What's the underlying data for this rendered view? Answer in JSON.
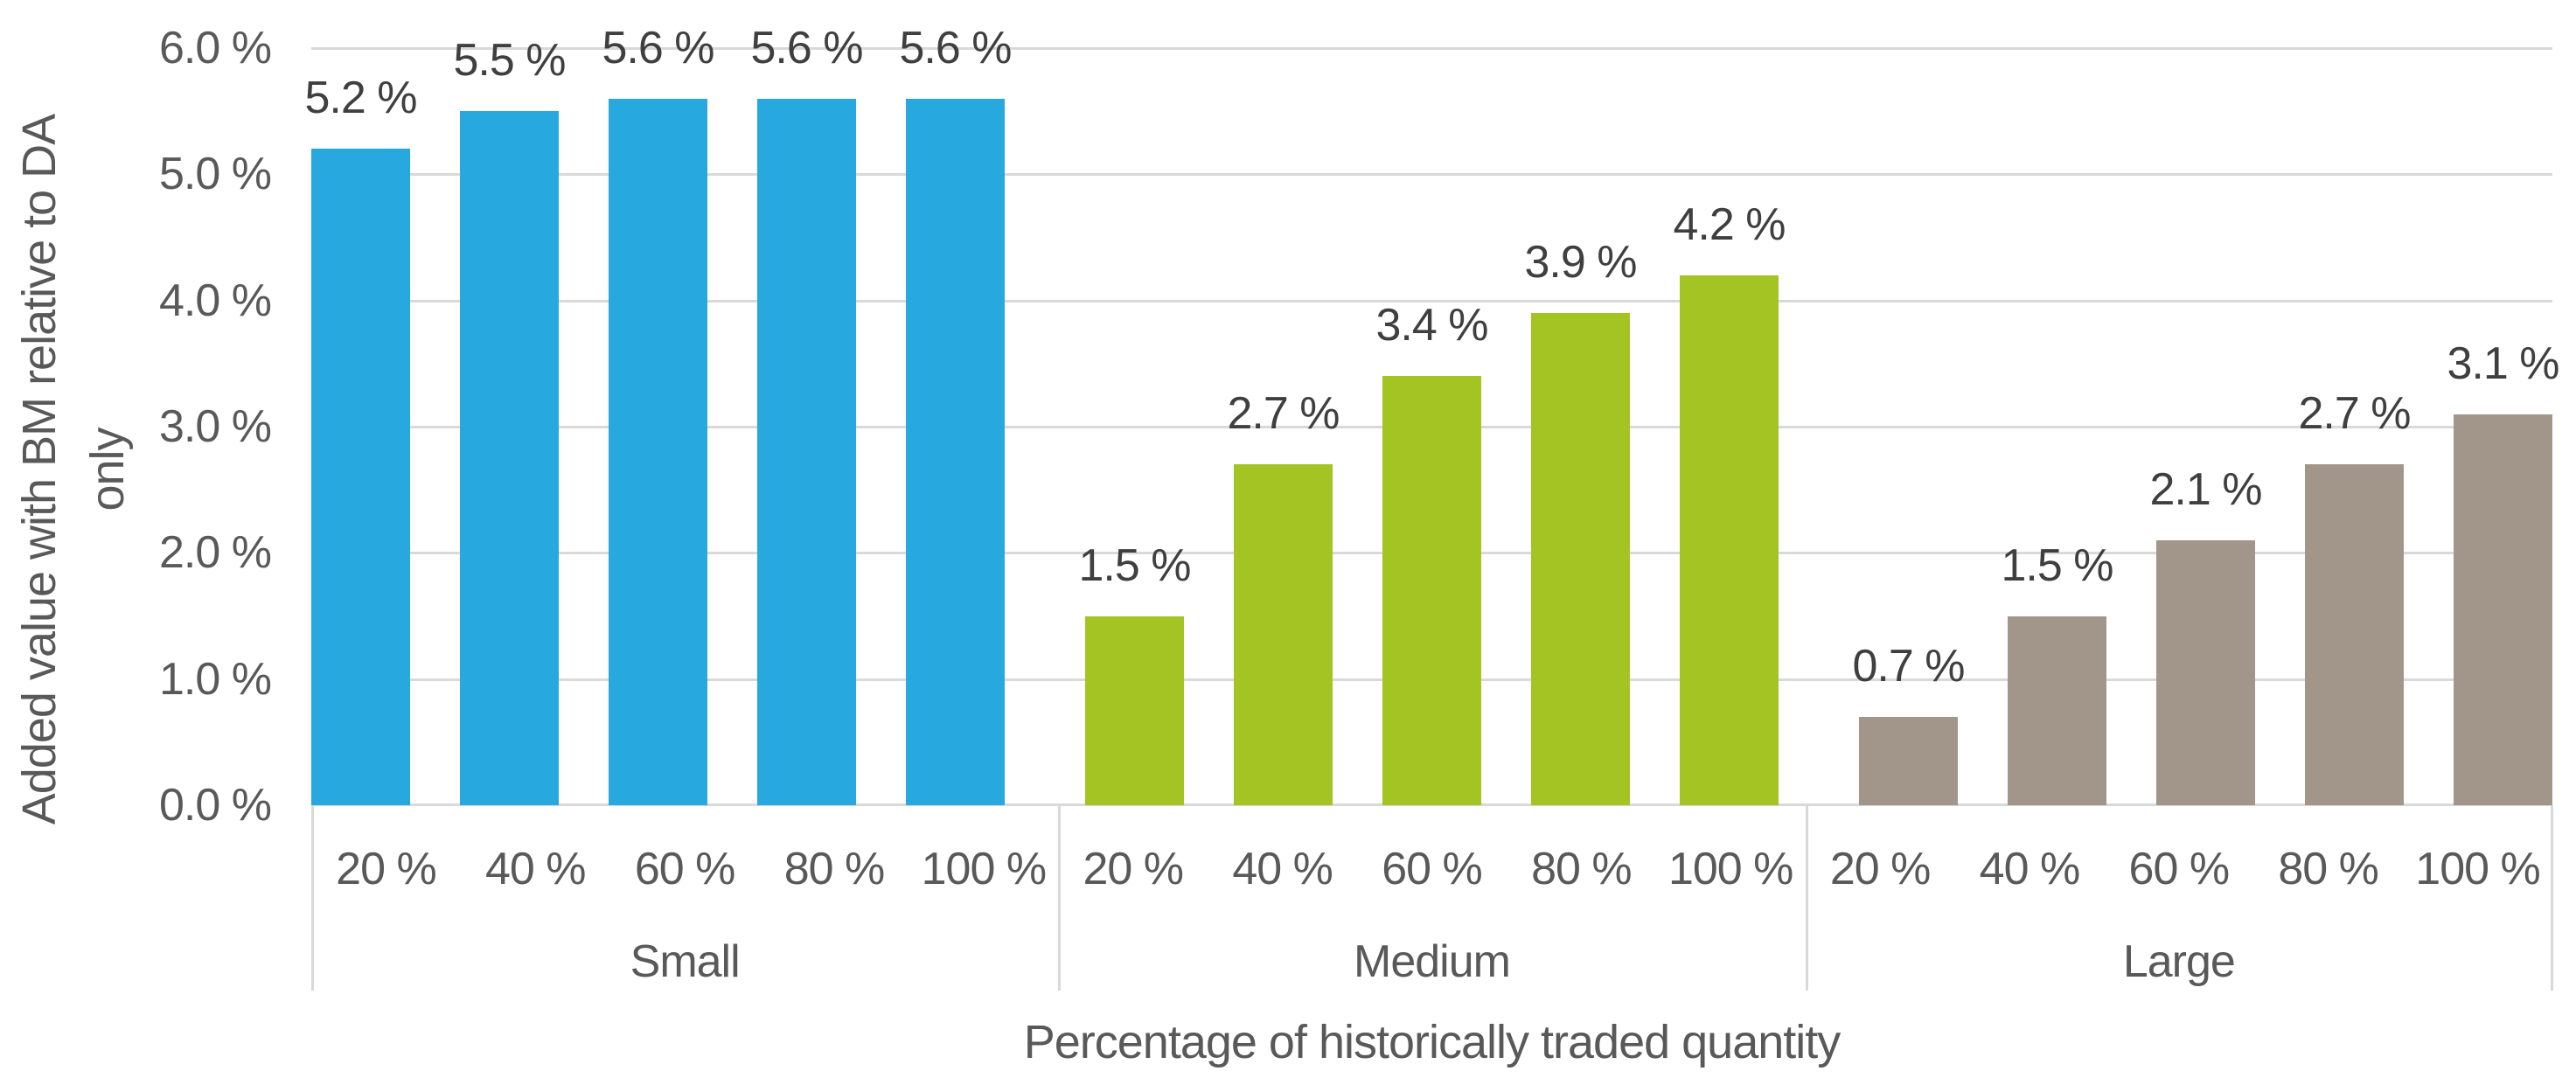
{
  "chart_data": {
    "type": "bar",
    "title": "",
    "xlabel": "Percentage of historically traded quantity",
    "ylabel": "Added value with BM relative to DA only",
    "ylabel_lines": [
      "Added value with BM relative to DA",
      "only"
    ],
    "ylim": [
      0,
      6
    ],
    "ytick_step": 1,
    "ytick_labels": [
      "0.0 %",
      "1.0 %",
      "2.0 %",
      "3.0 %",
      "4.0 %",
      "5.0 %",
      "6.0 %"
    ],
    "grid": true,
    "legend_position": "none",
    "categories_per_group": [
      "20 %",
      "40 %",
      "60 %",
      "80 %",
      "100 %"
    ],
    "series": [
      {
        "name": "Small",
        "color": "#27A9E0",
        "values": [
          5.2,
          5.5,
          5.6,
          5.6,
          5.6
        ],
        "labels": [
          "5.2 %",
          "5.5 %",
          "5.6 %",
          "5.6 %",
          "5.6 %"
        ]
      },
      {
        "name": "Medium",
        "color": "#A4C424",
        "values": [
          1.5,
          2.7,
          3.4,
          3.9,
          4.2
        ],
        "labels": [
          "1.5 %",
          "2.7 %",
          "3.4 %",
          "3.9 %",
          "4.2 %"
        ]
      },
      {
        "name": "Large",
        "color": "#A19689",
        "values": [
          0.7,
          1.5,
          2.1,
          2.7,
          3.1
        ],
        "labels": [
          "0.7 %",
          "1.5 %",
          "2.1 %",
          "2.7 %",
          "3.1 %"
        ]
      }
    ],
    "colors": {
      "gridline": "#D9D9D9",
      "axis_line": "#D9D9D9",
      "divider": "#D9D9D9",
      "tick_text": "#595959",
      "data_label_text": "#3F3F3F",
      "axis_title_text": "#595959"
    }
  }
}
